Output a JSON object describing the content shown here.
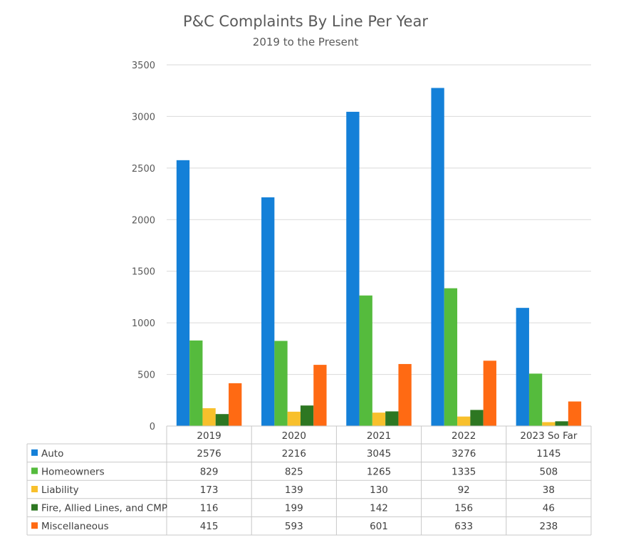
{
  "title": "P&C Complaints By Line Per Year",
  "subtitle": "2019 to the Present",
  "colors": {
    "Auto": "#1480d8",
    "Homeowners": "#55bb3d",
    "Liability": "#f8c02c",
    "Fire, Allied Lines, and CMP": "#2d7722",
    "Miscellaneous": "#ff6a13",
    "grid": "#d9d9d9",
    "table_border": "#c8c8c8"
  },
  "chart_data": {
    "type": "bar",
    "title": "P&C Complaints By Line Per Year",
    "subtitle": "2019 to the Present",
    "categories": [
      "2019",
      "2020",
      "2021",
      "2022",
      "2023 So Far"
    ],
    "series": [
      {
        "name": "Auto",
        "values": [
          2576,
          2216,
          3045,
          3276,
          1145
        ]
      },
      {
        "name": "Homeowners",
        "values": [
          829,
          825,
          1265,
          1335,
          508
        ]
      },
      {
        "name": "Liability",
        "values": [
          173,
          139,
          130,
          92,
          38
        ]
      },
      {
        "name": "Fire, Allied Lines, and CMP",
        "values": [
          116,
          199,
          142,
          156,
          46
        ]
      },
      {
        "name": "Miscellaneous",
        "values": [
          415,
          593,
          601,
          633,
          238
        ]
      }
    ],
    "ylim": [
      0,
      3500
    ],
    "yticks": [
      0,
      500,
      1000,
      1500,
      2000,
      2500,
      3000,
      3500
    ],
    "grid": true,
    "legend": "data table below chart"
  }
}
